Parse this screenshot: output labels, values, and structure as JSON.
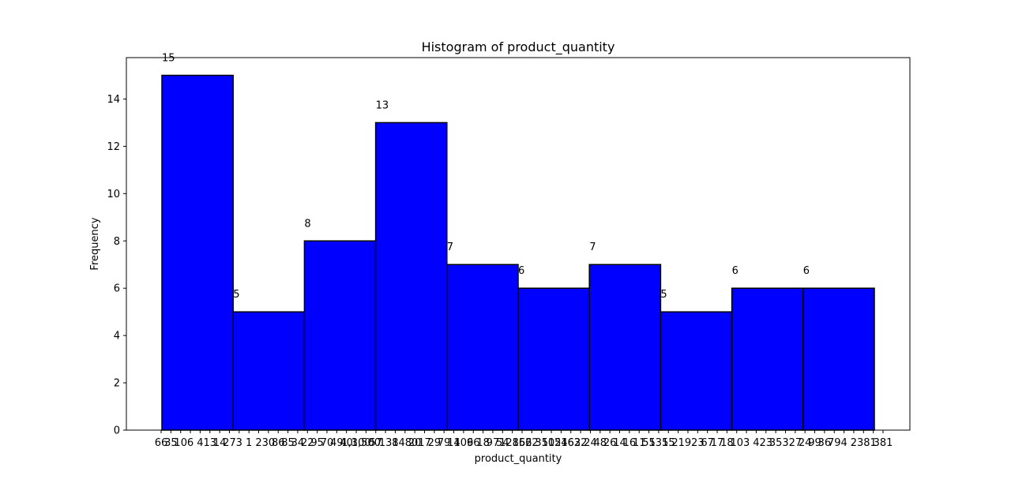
{
  "chart_data": {
    "type": "bar",
    "title": "Histogram of product_quantity",
    "xlabel": "product_quantity",
    "ylabel": "Frequency",
    "ylim": [
      0,
      15.75
    ],
    "yticks": [
      0,
      2,
      4,
      6,
      8,
      10,
      12,
      14
    ],
    "grid": false,
    "legend": "none",
    "bar_color": "#0000ff",
    "edge_color": "#000000",
    "bins": [
      {
        "label": "15",
        "value": 15
      },
      {
        "label": "5",
        "value": 5
      },
      {
        "label": "8",
        "value": 8
      },
      {
        "label": "13",
        "value": 13
      },
      {
        "label": "7",
        "value": 7
      },
      {
        "label": "6",
        "value": 6
      },
      {
        "label": "7",
        "value": 7
      },
      {
        "label": "5",
        "value": 5
      },
      {
        "label": "6",
        "value": 6
      },
      {
        "label": "6",
        "value": 6
      }
    ],
    "xtick_labels": [
      "66",
      "35",
      "10",
      "6",
      "4",
      "13",
      "14",
      "27",
      "3",
      "1",
      "2",
      "30",
      "86",
      "85",
      "34",
      "22",
      "95",
      "70",
      "49",
      "40",
      "1,300",
      "1,500",
      "57",
      "13",
      "8",
      "1480",
      "20",
      "17",
      "29",
      "79",
      "14",
      "109",
      "66",
      "18",
      "97",
      "54",
      "1286",
      "156",
      "22",
      "35",
      "105",
      "1246",
      "163",
      "22",
      "24",
      "48",
      "26",
      "14",
      "16",
      "11",
      "55",
      "135",
      "15",
      "21",
      "9",
      "23",
      "67",
      "17",
      "18",
      "10",
      "3",
      "4",
      "23",
      "35",
      "3",
      "27",
      "24",
      "99",
      "36",
      "79",
      "4",
      "2",
      "38",
      "1",
      "381"
    ]
  }
}
